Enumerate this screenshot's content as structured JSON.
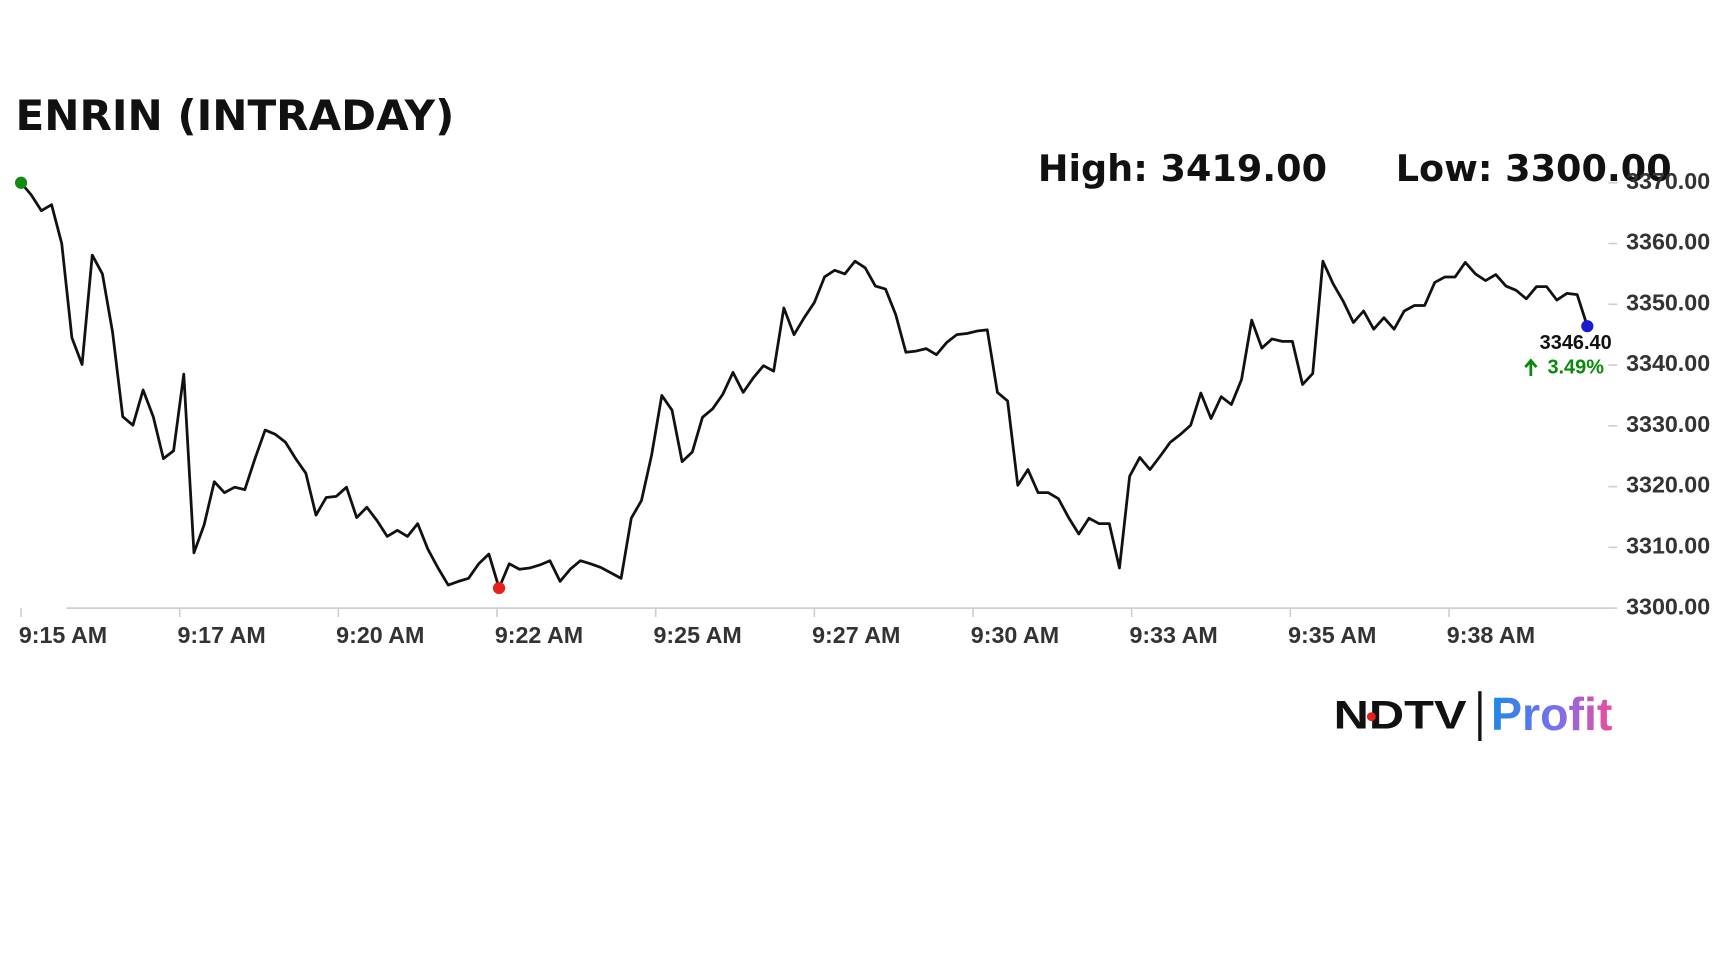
{
  "chart_data": {
    "type": "line",
    "title": "ENRIN (INTRADAY)",
    "high_label": "High: 3419.00",
    "low_label": "Low: 3300.00",
    "end_label": "3346.40",
    "change_label": "3.49%",
    "change_color": "#0a8a0a",
    "color": "#111111",
    "start_marker_color": "#138a13",
    "min_marker_color": "#e8201c",
    "end_marker_color": "#1a1ad0",
    "logo": {
      "left": "NDTV",
      "right": "Profit"
    },
    "values": [
      3370.0,
      3368.0,
      3365.4,
      3366.4,
      3360.0,
      3344.5,
      3340.1,
      3358.1,
      3355.0,
      3345.4,
      3331.5,
      3330.1,
      3335.9,
      3331.5,
      3324.6,
      3325.9,
      3338.5,
      3309.1,
      3313.7,
      3320.8,
      3319.0,
      3319.9,
      3319.5,
      3324.6,
      3329.3,
      3328.6,
      3327.3,
      3324.6,
      3322.2,
      3315.3,
      3318.2,
      3318.4,
      3319.9,
      3314.9,
      3316.6,
      3314.4,
      3311.8,
      3312.8,
      3311.8,
      3313.9,
      3309.7,
      3306.6,
      3303.8,
      3304.4,
      3304.9,
      3307.3,
      3308.9,
      3303.3,
      3307.3,
      3306.4,
      3306.6,
      3307.1,
      3307.8,
      3304.4,
      3306.4,
      3307.8,
      3307.3,
      3306.7,
      3305.8,
      3304.9,
      3314.8,
      3317.7,
      3325.2,
      3335.0,
      3332.6,
      3324.1,
      3325.7,
      3331.4,
      3332.8,
      3335.2,
      3338.8,
      3335.5,
      3337.9,
      3339.9,
      3339.0,
      3349.4,
      3345.0,
      3347.8,
      3350.3,
      3354.5,
      3355.6,
      3355.0,
      3357.1,
      3356.0,
      3353.0,
      3352.5,
      3348.3,
      3342.1,
      3342.3,
      3342.7,
      3341.7,
      3343.7,
      3345.0,
      3345.2,
      3345.6,
      3345.8,
      3335.5,
      3334.1,
      3320.2,
      3322.8,
      3319.0,
      3319.0,
      3318.0,
      3314.9,
      3312.2,
      3314.8,
      3313.9,
      3313.9,
      3306.6,
      3321.7,
      3324.8,
      3322.8,
      3325.0,
      3327.3,
      3328.6,
      3330.1,
      3335.4,
      3331.2,
      3334.8,
      3333.5,
      3337.6,
      3347.4,
      3342.8,
      3344.3,
      3343.9,
      3343.9,
      3336.8,
      3338.6,
      3357.1,
      3353.4,
      3350.5,
      3347.0,
      3348.9,
      3345.9,
      3347.8,
      3345.9,
      3348.9,
      3349.8,
      3349.8,
      3353.6,
      3354.5,
      3354.5,
      3356.9,
      3355.0,
      3353.9,
      3354.9,
      3353.0,
      3352.3,
      3350.9,
      3352.9,
      3352.9,
      3350.7,
      3351.8,
      3351.6,
      3346.4
    ],
    "xlim": [
      0,
      154
    ],
    "xticks": [
      {
        "value": 0,
        "label": "9:15 AM"
      },
      {
        "value": 15.6,
        "label": "9:17 AM"
      },
      {
        "value": 31.2,
        "label": "9:20 AM"
      },
      {
        "value": 46.8,
        "label": "9:22 AM"
      },
      {
        "value": 62.4,
        "label": "9:25 AM"
      },
      {
        "value": 78,
        "label": "9:27 AM"
      },
      {
        "value": 93.6,
        "label": "9:30 AM"
      },
      {
        "value": 109.2,
        "label": "9:33 AM"
      },
      {
        "value": 124.8,
        "label": "9:35 AM"
      },
      {
        "value": 140.4,
        "label": "9:38 AM"
      }
    ],
    "ylim": [
      3300,
      3370
    ],
    "yticks": [
      {
        "value": 3300,
        "label": "3300.00"
      },
      {
        "value": 3310,
        "label": "3310.00"
      },
      {
        "value": 3320,
        "label": "3320.00"
      },
      {
        "value": 3330,
        "label": "3330.00"
      },
      {
        "value": 3340,
        "label": "3340.00"
      },
      {
        "value": 3350,
        "label": "3350.00"
      },
      {
        "value": 3360,
        "label": "3360.00"
      },
      {
        "value": 3370,
        "label": "3370.00"
      }
    ],
    "grid": false
  }
}
